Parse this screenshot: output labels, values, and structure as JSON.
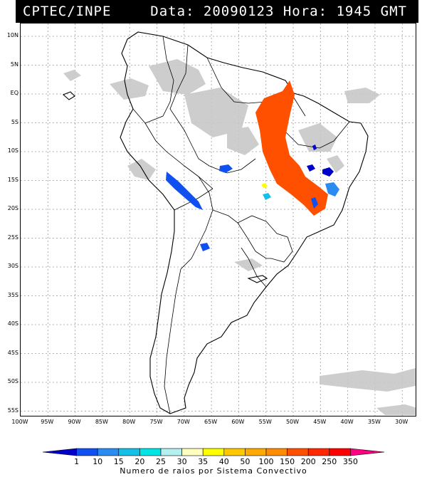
{
  "header": {
    "source": "CPTEC/INPE",
    "datetime": "Data: 20090123 Hora: 1945 GMT"
  },
  "map": {
    "lat_labels": [
      "10N",
      "5N",
      "EQ",
      "5S",
      "10S",
      "15S",
      "20S",
      "25S",
      "30S",
      "35S",
      "40S",
      "45S",
      "50S",
      "55S"
    ],
    "lon_labels": [
      "100W",
      "95W",
      "90W",
      "85W",
      "80W",
      "75W",
      "70W",
      "65W",
      "60W",
      "55W",
      "50W",
      "45W",
      "40W",
      "35W",
      "30W"
    ]
  },
  "legend": {
    "labels": [
      "1",
      "10",
      "15",
      "20",
      "25",
      "30",
      "35",
      "40",
      "50",
      "100",
      "150",
      "200",
      "250",
      "350"
    ],
    "colors": [
      "#0000cc",
      "#1050f0",
      "#2a8cf0",
      "#14c0e8",
      "#00e6e6",
      "#b4f0f0",
      "#ffffc0",
      "#ffff00",
      "#ffc800",
      "#ffaa00",
      "#ff8c00",
      "#ff5000",
      "#ff2800",
      "#ff0000",
      "#ff0080"
    ],
    "title": "Numero de raios por Sistema Convectivo"
  }
}
